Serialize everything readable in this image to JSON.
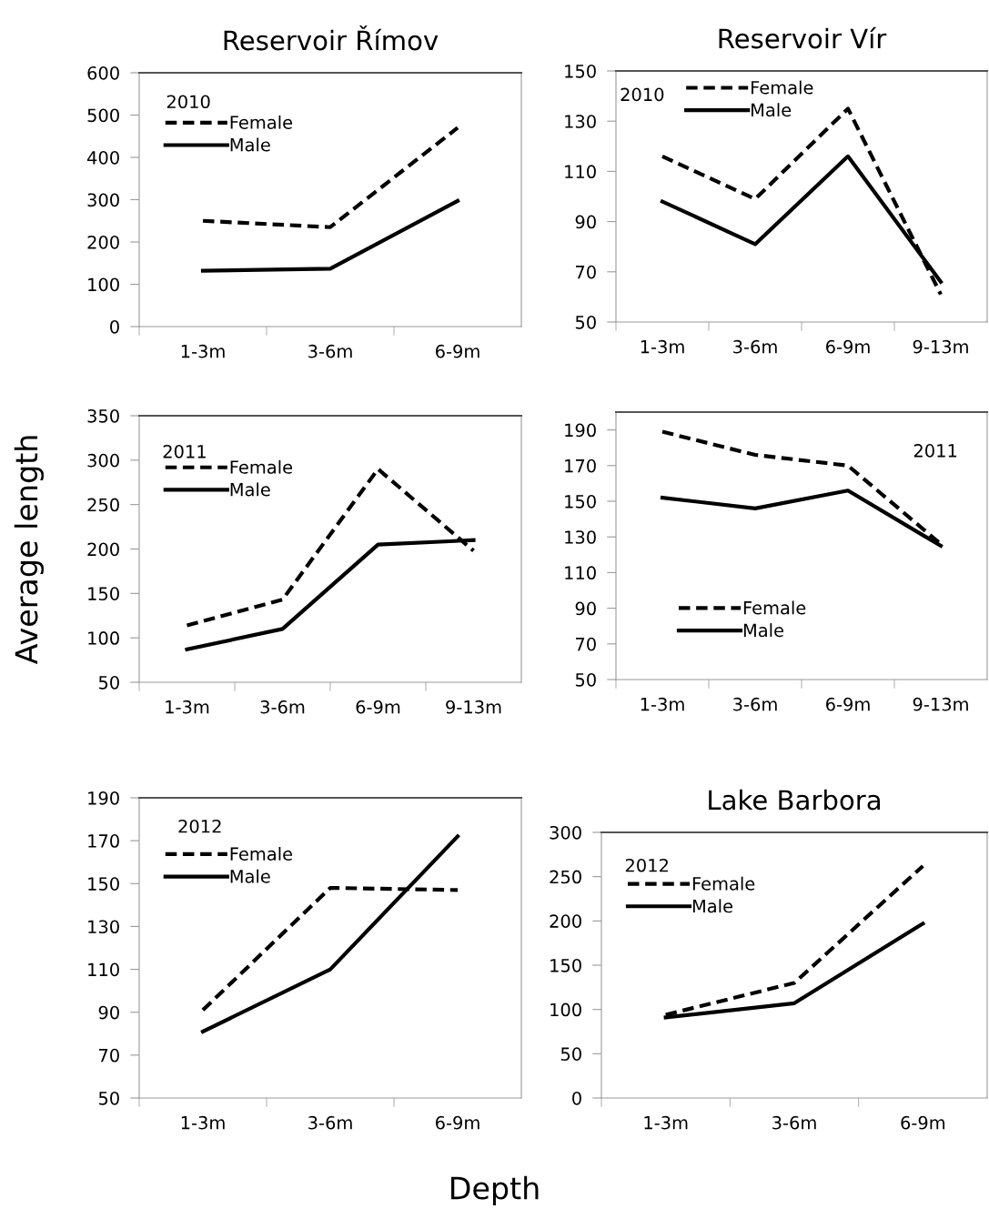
{
  "chart_data": [
    {
      "type": "line",
      "title": "Reservoir Římov",
      "categories": [
        "1-3m",
        "3-6m",
        "6-9m"
      ],
      "ylim": [
        0,
        600
      ],
      "yticks": [
        0,
        100,
        200,
        300,
        400,
        500,
        600
      ],
      "grid": false,
      "legend": "top left",
      "marker": "none",
      "annotations": [
        "2010"
      ],
      "series": [
        {
          "name": "Female",
          "color": "#000000",
          "line_style": "dashed",
          "values": [
            250,
            235,
            470
          ]
        },
        {
          "name": "Male",
          "color": "#000000",
          "line_style": "solid",
          "values": [
            132,
            137,
            297
          ]
        }
      ]
    },
    {
      "type": "line",
      "title": "Reservoir Vír",
      "categories": [
        "1-3m",
        "3-6m",
        "6-9m",
        "9-13m"
      ],
      "ylim": [
        50,
        150
      ],
      "yticks": [
        50,
        70,
        90,
        110,
        130,
        150
      ],
      "grid": false,
      "legend": "top",
      "marker": "none",
      "annotations": [
        "2010"
      ],
      "series": [
        {
          "name": "Female",
          "color": "#000000",
          "line_style": "dashed",
          "values": [
            116,
            99,
            135,
            61
          ]
        },
        {
          "name": "Male",
          "color": "#000000",
          "line_style": "solid",
          "values": [
            98,
            81,
            116,
            66
          ]
        }
      ]
    },
    {
      "type": "line",
      "ylabel": "Average length",
      "categories": [
        "1-3m",
        "3-6m",
        "6-9m",
        "9-13m"
      ],
      "ylim": [
        50,
        350
      ],
      "yticks": [
        50,
        100,
        150,
        200,
        250,
        300,
        350
      ],
      "grid": false,
      "legend": "top left",
      "marker": "none",
      "annotations": [
        "2011"
      ],
      "series": [
        {
          "name": "Female",
          "color": "#000000",
          "line_style": "dashed",
          "values": [
            114,
            143,
            290,
            198
          ]
        },
        {
          "name": "Male",
          "color": "#000000",
          "line_style": "solid",
          "values": [
            87,
            110,
            205,
            210
          ]
        }
      ]
    },
    {
      "type": "line",
      "categories": [
        "1-3m",
        "3-6m",
        "6-9m",
        "9-13m"
      ],
      "ylim": [
        50,
        200
      ],
      "yticks": [
        50,
        70,
        90,
        110,
        130,
        150,
        170,
        190
      ],
      "grid": false,
      "legend": "bottom left",
      "marker": "none",
      "annotations": [
        "2011"
      ],
      "series": [
        {
          "name": "Female",
          "color": "#000000",
          "line_style": "dashed",
          "values": [
            189,
            176,
            170,
            126
          ]
        },
        {
          "name": "Male",
          "color": "#000000",
          "line_style": "solid",
          "values": [
            152,
            146,
            156,
            125
          ]
        }
      ]
    },
    {
      "type": "line",
      "xlabel": "Depth",
      "categories": [
        "1-3m",
        "3-6m",
        "6-9m"
      ],
      "ylim": [
        50,
        190
      ],
      "yticks": [
        50,
        70,
        90,
        110,
        130,
        150,
        170,
        190
      ],
      "grid": false,
      "legend": "top left",
      "marker": "none",
      "annotations": [
        "2012"
      ],
      "series": [
        {
          "name": "Female",
          "color": "#000000",
          "line_style": "dashed",
          "values": [
            91,
            148,
            147
          ]
        },
        {
          "name": "Male",
          "color": "#000000",
          "line_style": "solid",
          "values": [
            81,
            110,
            172
          ]
        }
      ]
    },
    {
      "type": "line",
      "title": "Lake Barbora",
      "categories": [
        "1-3m",
        "3-6m",
        "6-9m"
      ],
      "ylim": [
        0,
        300
      ],
      "yticks": [
        0,
        50,
        100,
        150,
        200,
        250,
        300
      ],
      "grid": false,
      "legend": "top left",
      "marker": "none",
      "annotations": [
        "2012"
      ],
      "series": [
        {
          "name": "Female",
          "color": "#000000",
          "line_style": "dashed",
          "values": [
            94,
            130,
            262
          ]
        },
        {
          "name": "Male",
          "color": "#000000",
          "line_style": "solid",
          "values": [
            91,
            107,
            197
          ]
        }
      ]
    }
  ]
}
